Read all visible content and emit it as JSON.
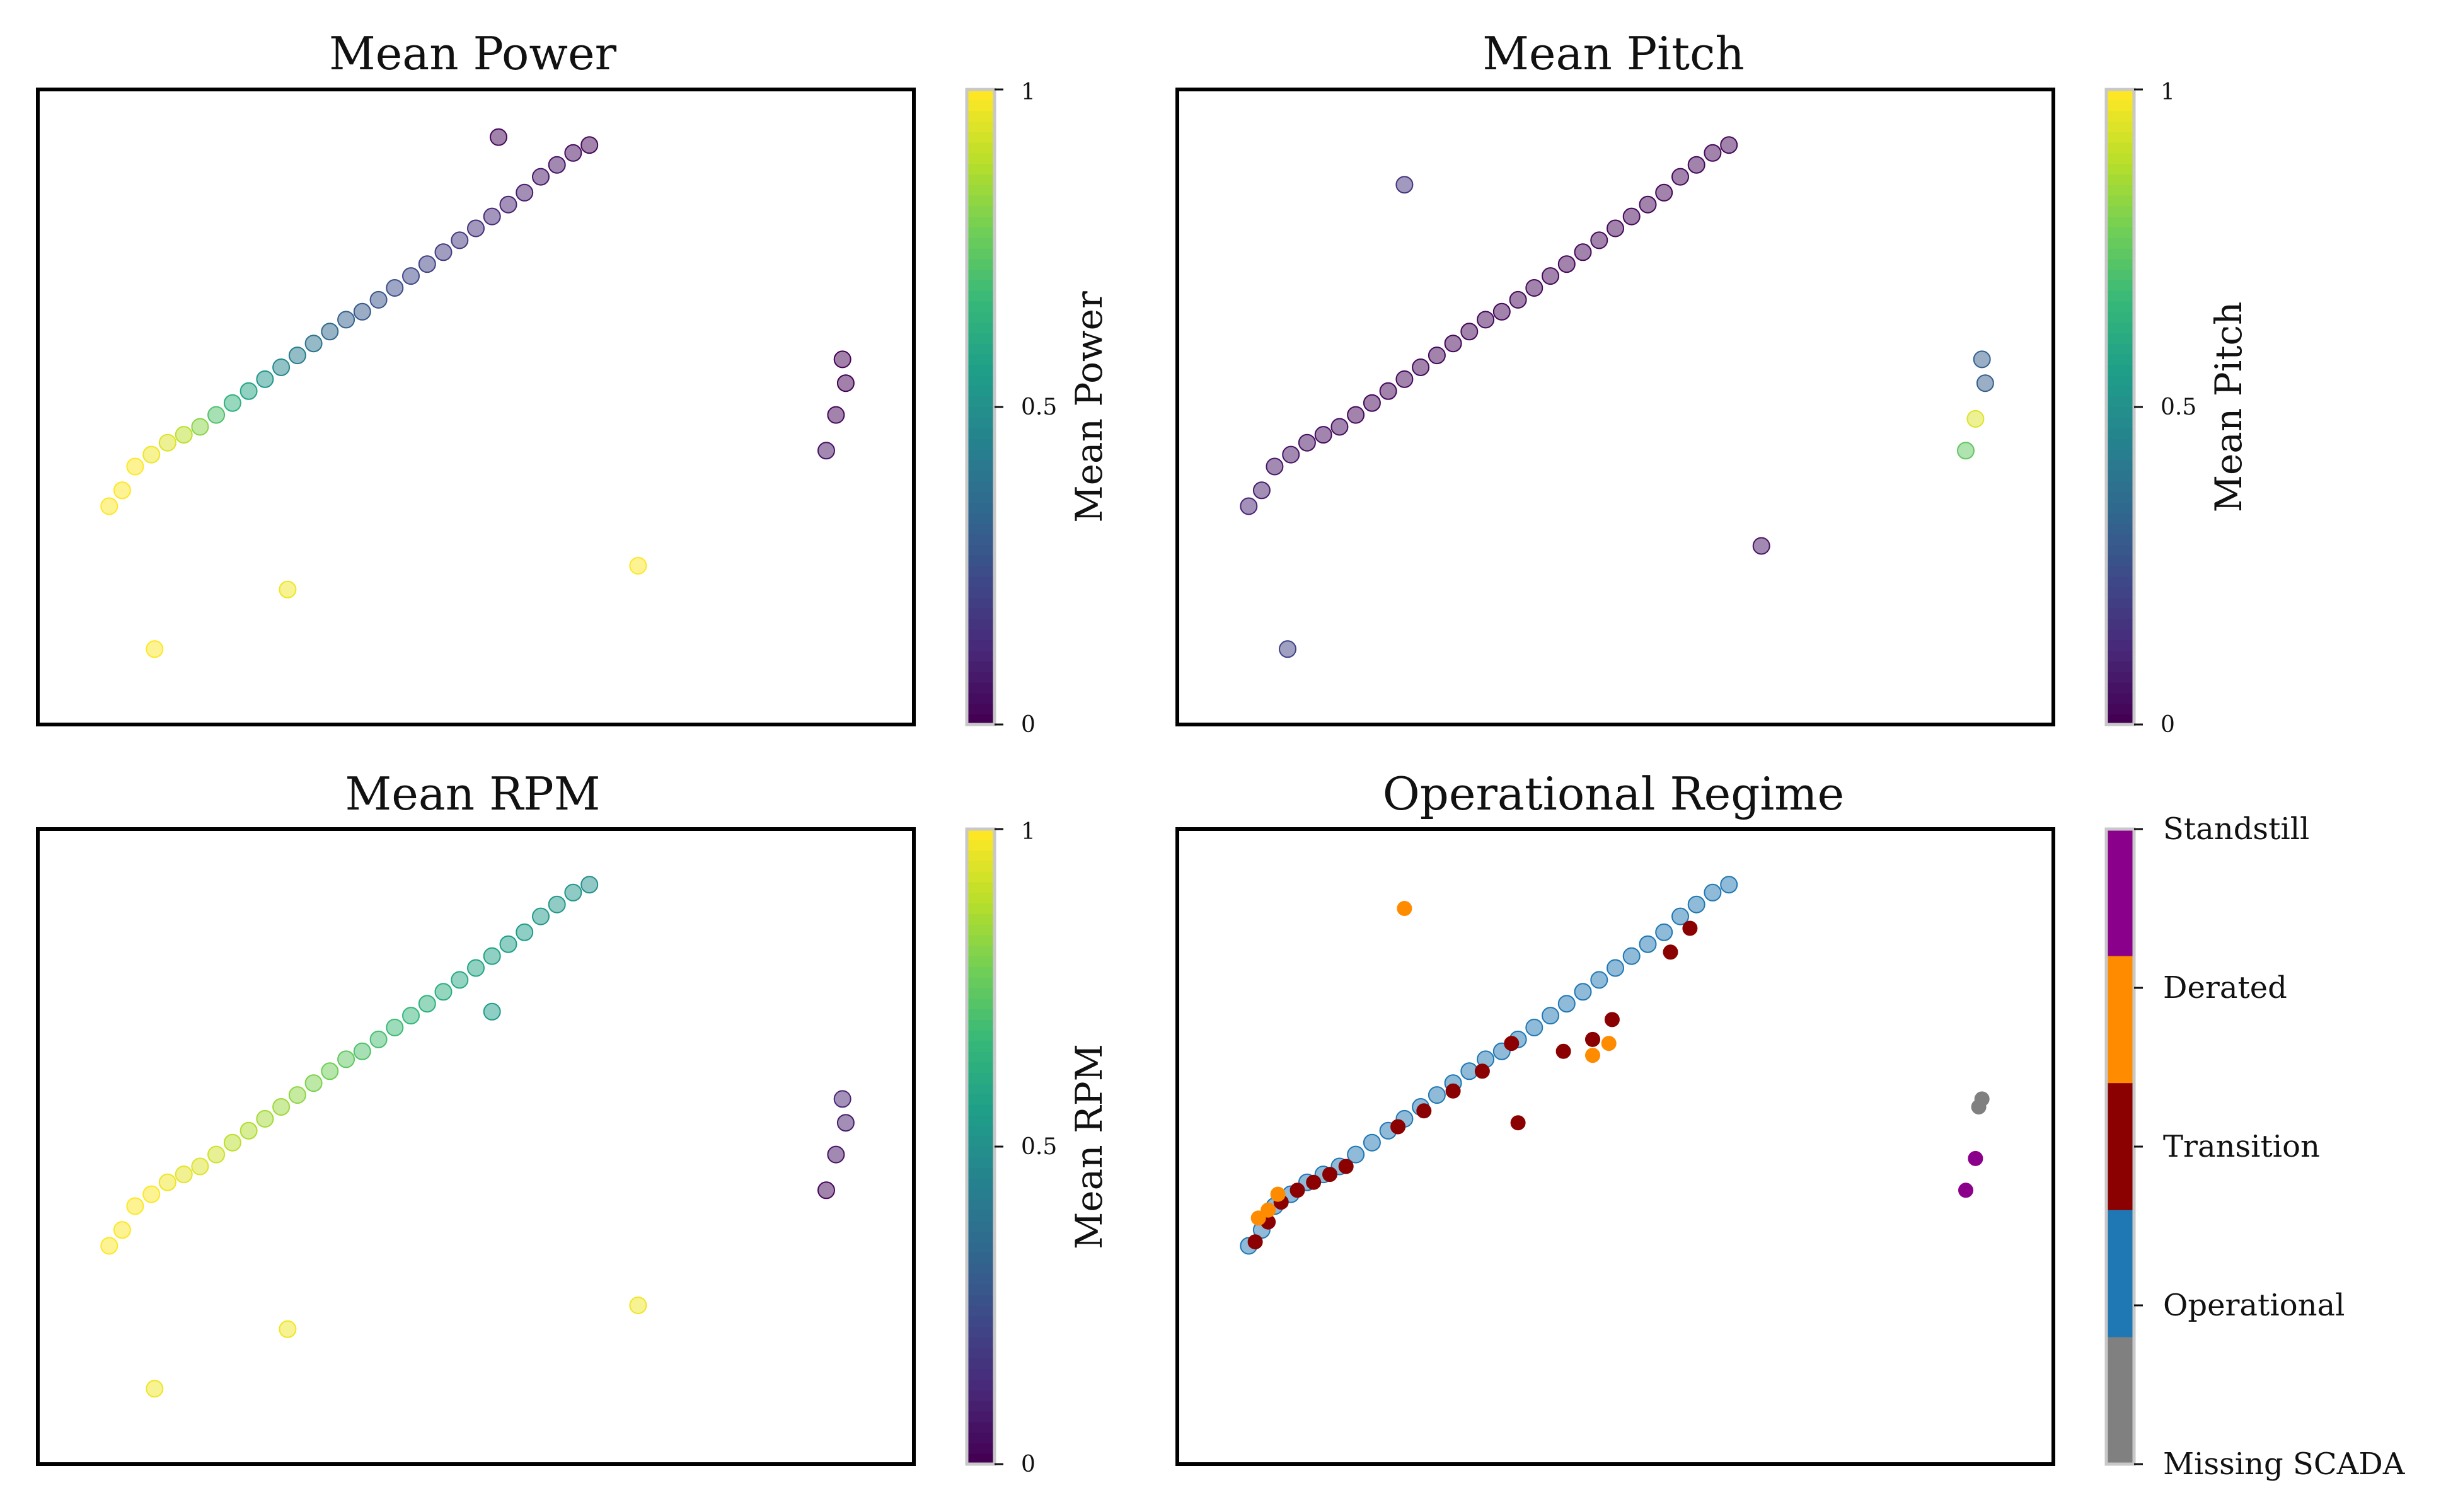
{
  "chart_data": [
    {
      "type": "scatter",
      "title": "Mean Power",
      "colorbar": {
        "label": "Mean Power",
        "ticks": [
          "0",
          "0.5",
          "1"
        ],
        "colormap": "viridis",
        "range": [
          0,
          1
        ]
      },
      "series": [
        {
          "x": [
            -7.8,
            -7.4,
            -7.0,
            -6.5,
            -6.0,
            -5.5,
            -5.0,
            -4.5,
            -4.0,
            -3.5,
            -3.0,
            -2.5,
            -2.0,
            -1.5,
            -1.0,
            -0.5,
            0.0,
            0.5,
            1.0,
            1.5,
            2.0,
            2.5,
            3.0,
            3.5,
            4.0,
            4.5,
            5.0,
            5.5,
            6.0,
            6.5,
            7.0
          ],
          "y": [
            -3.5,
            -3.1,
            -2.5,
            -2.2,
            -1.9,
            -1.7,
            -1.5,
            -1.2,
            -0.9,
            -0.6,
            -0.3,
            0.0,
            0.3,
            0.6,
            0.9,
            1.2,
            1.4,
            1.7,
            2.0,
            2.3,
            2.6,
            2.9,
            3.2,
            3.5,
            3.8,
            4.1,
            4.4,
            4.8,
            5.1,
            5.4,
            5.6
          ],
          "c": [
            1.0,
            1.0,
            1.0,
            0.98,
            0.95,
            0.9,
            0.82,
            0.72,
            0.64,
            0.58,
            0.52,
            0.47,
            0.42,
            0.38,
            0.34,
            0.31,
            0.28,
            0.26,
            0.24,
            0.22,
            0.2,
            0.18,
            0.16,
            0.14,
            0.12,
            0.1,
            0.08,
            0.06,
            0.05,
            0.03,
            0.02
          ]
        },
        {
          "x": [
            4.2,
            -6.4,
            -2.3,
            8.5
          ],
          "y": [
            5.8,
            -7.1,
            -5.6,
            -5.0
          ],
          "c": [
            0.02,
            1.0,
            0.98,
            1.0
          ]
        },
        {
          "x": [
            14.8,
            14.9,
            14.6,
            14.3
          ],
          "y": [
            0.2,
            -0.4,
            -1.2,
            -2.1
          ],
          "c": [
            0.0,
            0.0,
            0.02,
            0.05
          ]
        }
      ]
    },
    {
      "type": "scatter",
      "title": "Mean Pitch",
      "colorbar": {
        "label": "Mean Pitch",
        "ticks": [
          "0",
          "0.5",
          "1"
        ],
        "colormap": "viridis",
        "range": [
          0,
          1
        ]
      },
      "series": [
        {
          "x": [
            -7.8,
            -7.4,
            -7.0,
            -6.5,
            -6.0,
            -5.5,
            -5.0,
            -4.5,
            -4.0,
            -3.5,
            -3.0,
            -2.5,
            -2.0,
            -1.5,
            -1.0,
            -0.5,
            0.0,
            0.5,
            1.0,
            1.5,
            2.0,
            2.5,
            3.0,
            3.5,
            4.0,
            4.5,
            5.0,
            5.5,
            6.0,
            6.5,
            7.0
          ],
          "y": [
            -3.5,
            -3.1,
            -2.5,
            -2.2,
            -1.9,
            -1.7,
            -1.5,
            -1.2,
            -0.9,
            -0.6,
            -0.3,
            0.0,
            0.3,
            0.6,
            0.9,
            1.2,
            1.4,
            1.7,
            2.0,
            2.3,
            2.6,
            2.9,
            3.2,
            3.5,
            3.8,
            4.1,
            4.4,
            4.8,
            5.1,
            5.4,
            5.6
          ],
          "c": [
            0.1,
            0.08,
            0.06,
            0.05,
            0.04,
            0.03,
            0.03,
            0.02,
            0.02,
            0.02,
            0.02,
            0.02,
            0.02,
            0.02,
            0.02,
            0.02,
            0.02,
            0.02,
            0.02,
            0.02,
            0.02,
            0.02,
            0.02,
            0.02,
            0.02,
            0.02,
            0.02,
            0.02,
            0.02,
            0.02,
            0.02
          ]
        },
        {
          "x": [
            -3.0,
            -6.6,
            8.0
          ],
          "y": [
            4.6,
            -7.1,
            -4.5
          ],
          "c": [
            0.15,
            0.2,
            0.05
          ]
        },
        {
          "x": [
            14.8,
            14.9,
            14.6,
            14.3
          ],
          "y": [
            0.2,
            -0.4,
            -1.3,
            -2.1
          ],
          "c": [
            0.3,
            0.3,
            0.95,
            0.75
          ]
        }
      ]
    },
    {
      "type": "scatter",
      "title": "Mean RPM",
      "colorbar": {
        "label": "Mean RPM",
        "ticks": [
          "0",
          "0.5",
          "1"
        ],
        "colormap": "viridis",
        "range": [
          0,
          1
        ]
      },
      "series": [
        {
          "x": [
            -7.8,
            -7.4,
            -7.0,
            -6.5,
            -6.0,
            -5.5,
            -5.0,
            -4.5,
            -4.0,
            -3.5,
            -3.0,
            -2.5,
            -2.0,
            -1.5,
            -1.0,
            -0.5,
            0.0,
            0.5,
            1.0,
            1.5,
            2.0,
            2.5,
            3.0,
            3.5,
            4.0,
            4.5,
            5.0,
            5.5,
            6.0,
            6.5,
            7.0
          ],
          "y": [
            -3.5,
            -3.1,
            -2.5,
            -2.2,
            -1.9,
            -1.7,
            -1.5,
            -1.2,
            -0.9,
            -0.6,
            -0.3,
            0.0,
            0.3,
            0.6,
            0.9,
            1.2,
            1.4,
            1.7,
            2.0,
            2.3,
            2.6,
            2.9,
            3.2,
            3.5,
            3.8,
            4.1,
            4.4,
            4.8,
            5.1,
            5.4,
            5.6
          ],
          "c": [
            1.0,
            1.0,
            1.0,
            1.0,
            0.98,
            0.96,
            0.95,
            0.93,
            0.9,
            0.88,
            0.86,
            0.85,
            0.83,
            0.8,
            0.78,
            0.75,
            0.72,
            0.7,
            0.68,
            0.66,
            0.64,
            0.62,
            0.6,
            0.58,
            0.57,
            0.56,
            0.55,
            0.54,
            0.53,
            0.52,
            0.5
          ]
        },
        {
          "x": [
            4.0,
            -6.4,
            -2.3,
            8.5
          ],
          "y": [
            2.4,
            -7.1,
            -5.6,
            -5.0
          ],
          "c": [
            0.55,
            0.98,
            0.98,
            0.98
          ]
        },
        {
          "x": [
            14.8,
            14.9,
            14.6,
            14.3
          ],
          "y": [
            0.2,
            -0.4,
            -1.2,
            -2.1
          ],
          "c": [
            0.1,
            0.08,
            0.05,
            0.02
          ]
        }
      ]
    },
    {
      "type": "scatter",
      "title": "Operational Regime",
      "categories": [
        "Standstill",
        "Derated",
        "Transition",
        "Operational",
        "Missing SCADA"
      ],
      "colors": {
        "Standstill": "#8b008b",
        "Derated": "#ff8c00",
        "Transition": "#8b0000",
        "Operational": "#1f77b4",
        "Missing SCADA": "#808080"
      },
      "series": [
        {
          "category": "Operational",
          "x": [
            -7.8,
            -7.4,
            -7.0,
            -6.5,
            -6.0,
            -5.5,
            -5.0,
            -4.5,
            -4.0,
            -3.5,
            -3.0,
            -2.5,
            -2.0,
            -1.5,
            -1.0,
            -0.5,
            0.0,
            0.5,
            1.0,
            1.5,
            2.0,
            2.5,
            3.0,
            3.5,
            4.0,
            4.5,
            5.0,
            5.5,
            6.0,
            6.5,
            7.0
          ],
          "y": [
            -3.5,
            -3.1,
            -2.5,
            -2.2,
            -1.9,
            -1.7,
            -1.5,
            -1.2,
            -0.9,
            -0.6,
            -0.3,
            0.0,
            0.3,
            0.6,
            0.9,
            1.2,
            1.4,
            1.7,
            2.0,
            2.3,
            2.6,
            2.9,
            3.2,
            3.5,
            3.8,
            4.1,
            4.4,
            4.8,
            5.1,
            5.4,
            5.6
          ]
        },
        {
          "category": "Transition",
          "x": [
            -7.6,
            -7.2,
            -6.8,
            -6.3,
            -5.8,
            -5.3,
            -4.8,
            -3.2,
            -2.4,
            -1.5,
            -0.6,
            0.3,
            0.5,
            1.9,
            2.8,
            3.4,
            5.2,
            5.8
          ],
          "y": [
            -3.4,
            -2.9,
            -2.4,
            -2.1,
            -1.9,
            -1.7,
            -1.5,
            -0.5,
            -0.1,
            0.4,
            0.9,
            1.6,
            -0.4,
            1.4,
            1.7,
            2.2,
            3.9,
            4.5
          ]
        },
        {
          "category": "Derated",
          "x": [
            -7.5,
            -7.2,
            -6.9,
            -3.0,
            2.8,
            3.3
          ],
          "y": [
            -2.8,
            -2.6,
            -2.2,
            5.0,
            1.3,
            1.6
          ]
        },
        {
          "category": "Missing SCADA",
          "x": [
            14.8,
            14.7
          ],
          "y": [
            0.2,
            0.0
          ]
        },
        {
          "category": "Standstill",
          "x": [
            14.6,
            14.3
          ],
          "y": [
            -1.3,
            -2.1
          ]
        }
      ]
    }
  ]
}
